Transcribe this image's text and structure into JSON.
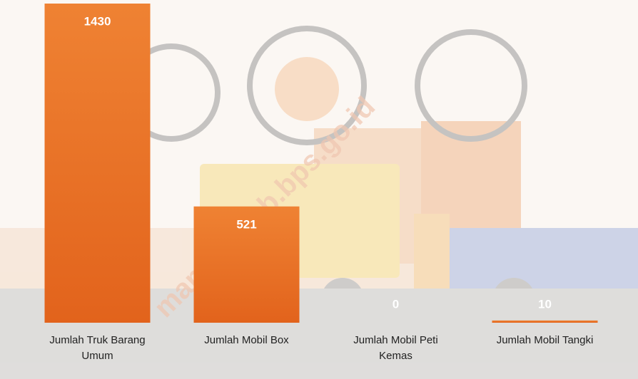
{
  "watermark": "mamayakab.bps.go.id",
  "chart_data": {
    "type": "bar",
    "categories": [
      "Jumlah Truk Barang Umum",
      "Jumlah Mobil Box",
      "Jumlah Mobil Peti Kemas",
      "Jumlah Mobil Tangki"
    ],
    "values": [
      1430,
      521,
      0,
      10
    ],
    "color": "#e8722a"
  }
}
